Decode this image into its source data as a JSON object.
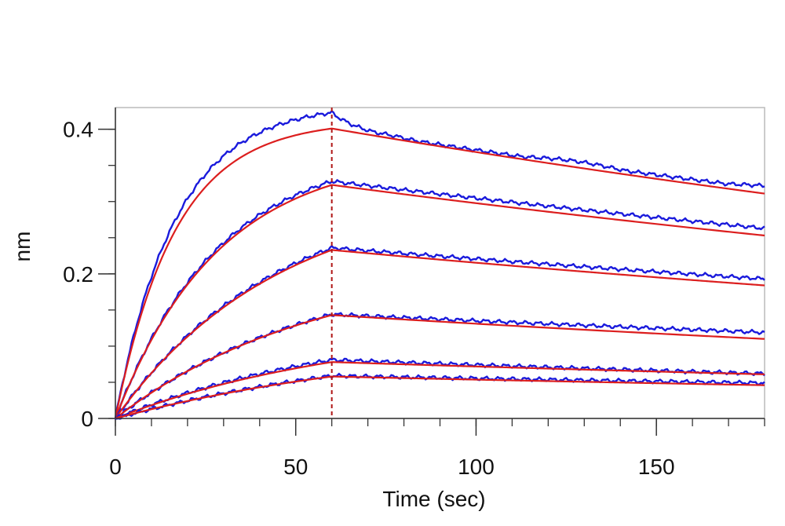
{
  "chart_data": {
    "type": "line",
    "xlabel": "Time (sec)",
    "ylabel": "nm",
    "xlim": [
      0,
      180
    ],
    "ylim": [
      0,
      0.43
    ],
    "x_ticks": [
      0,
      50,
      100,
      150
    ],
    "y_ticks": [
      0,
      0.2,
      0.4
    ],
    "x_tick_labels": [
      "0",
      "50",
      "100",
      "150"
    ],
    "y_tick_labels": [
      "0",
      "0.2",
      "0.4"
    ],
    "x_minor_step": 10,
    "y_minor_step": 0.05,
    "grid": false,
    "legend": "none",
    "association_end": 60,
    "colors": {
      "measured": "#1a1adc",
      "fit": "#dc1e1e",
      "marker_line": "#b01515",
      "axis": "#333333",
      "frame": "#bbbbbb"
    },
    "series": [
      {
        "peak": 0.401,
        "end": 0.311,
        "measured_peak": 0.423,
        "measured_end": 0.318
      },
      {
        "peak": 0.323,
        "end": 0.253,
        "measured_peak": 0.328,
        "measured_end": 0.263
      },
      {
        "peak": 0.233,
        "end": 0.184,
        "measured_peak": 0.236,
        "measured_end": 0.193
      },
      {
        "peak": 0.143,
        "end": 0.11,
        "measured_peak": 0.144,
        "measured_end": 0.119
      },
      {
        "peak": 0.078,
        "end": 0.061,
        "measured_peak": 0.081,
        "measured_end": 0.062
      },
      {
        "peak": 0.058,
        "end": 0.046,
        "measured_peak": 0.059,
        "measured_end": 0.049
      }
    ]
  }
}
